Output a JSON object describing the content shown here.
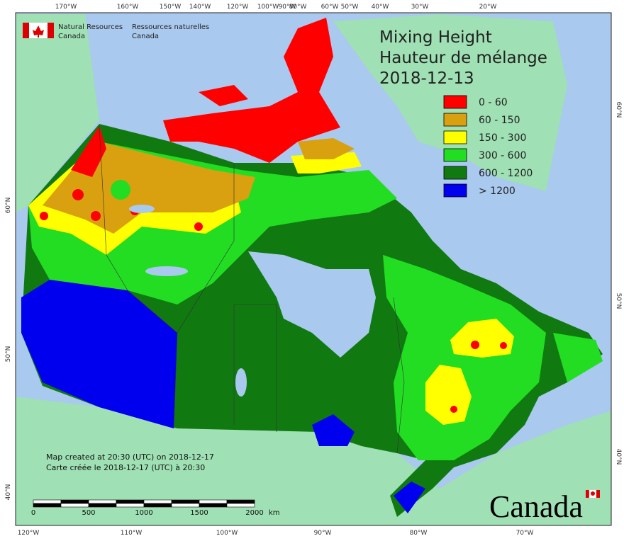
{
  "logo": {
    "en_line1": "Natural Resources",
    "en_line2": "Canada",
    "fr_line1": "Ressources naturelles",
    "fr_line2": "Canada"
  },
  "title": {
    "line1": "Mixing Height",
    "line2": "Hauteur de mélange",
    "date": "2018-12-13"
  },
  "legend": [
    {
      "label": "0 - 60",
      "color": "#ff0000"
    },
    {
      "label": "60 - 150",
      "color": "#d9a010"
    },
    {
      "label": "150 - 300",
      "color": "#ffff00"
    },
    {
      "label": "300 - 600",
      "color": "#22dd22"
    },
    {
      "label": "600 - 1200",
      "color": "#107a10"
    },
    {
      "label": "> 1200",
      "color": "#0000ee"
    }
  ],
  "graticule": {
    "top": [
      "170°W",
      "160°W",
      "150°W",
      "140°W",
      "120°W",
      "100°W",
      "90°W",
      "80°W",
      "60°W",
      "50°W",
      "40°W",
      "30°W",
      "20°W"
    ],
    "bottom": [
      "120°W",
      "110°W",
      "100°W",
      "90°W",
      "80°W",
      "70°W"
    ],
    "left": [
      "60°N",
      "50°N",
      "40°N"
    ],
    "right": [
      "60°N",
      "50°N",
      "40°N"
    ]
  },
  "notes": {
    "line1": "Map created at 20:30 (UTC) on 2018-12-17",
    "line2": "Carte créée le 2018-12-17 (UTC) à 20:30"
  },
  "scale_bar": {
    "labels": [
      "0",
      "500",
      "1000",
      "1500",
      "2000"
    ],
    "unit": "km"
  },
  "wordmark": "Canada"
}
